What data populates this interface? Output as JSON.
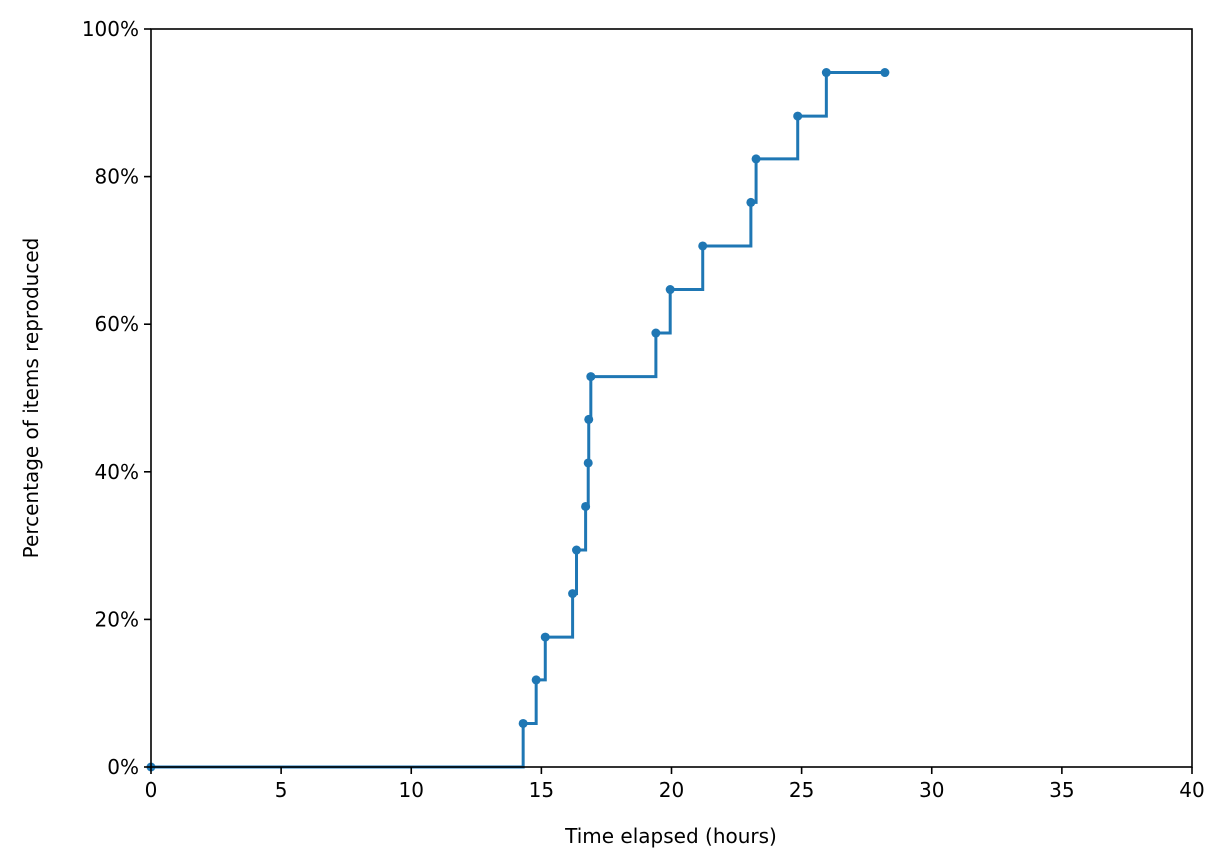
{
  "chart_data": {
    "type": "line",
    "step": "post",
    "title": "",
    "xlabel": "Time elapsed (hours)",
    "ylabel": "Percentage of items reproduced",
    "xlim": [
      0,
      40
    ],
    "ylim": [
      0,
      100
    ],
    "x_ticks": [
      0,
      5,
      10,
      15,
      20,
      25,
      30,
      35,
      40
    ],
    "y_ticks": [
      0,
      20,
      40,
      60,
      80,
      100
    ],
    "x_tick_labels": [
      "0",
      "5",
      "10",
      "15",
      "20",
      "25",
      "30",
      "35",
      "40"
    ],
    "y_tick_labels": [
      "0%",
      "20%",
      "40%",
      "60%",
      "80%",
      "100%"
    ],
    "grid": false,
    "legend": "none",
    "color": "#1f77b4",
    "series": [
      {
        "x": [
          0,
          14.3,
          14.8,
          15.15,
          16.2,
          16.35,
          16.7,
          16.8,
          16.82,
          16.9,
          19.4,
          19.95,
          21.2,
          23.05,
          23.25,
          24.85,
          25.95,
          28.2
        ],
        "y": [
          0,
          5.9,
          11.8,
          17.6,
          23.5,
          29.4,
          35.3,
          41.2,
          47.1,
          52.9,
          58.8,
          64.7,
          70.6,
          76.5,
          82.4,
          88.2,
          94.1,
          94.1
        ]
      }
    ]
  }
}
